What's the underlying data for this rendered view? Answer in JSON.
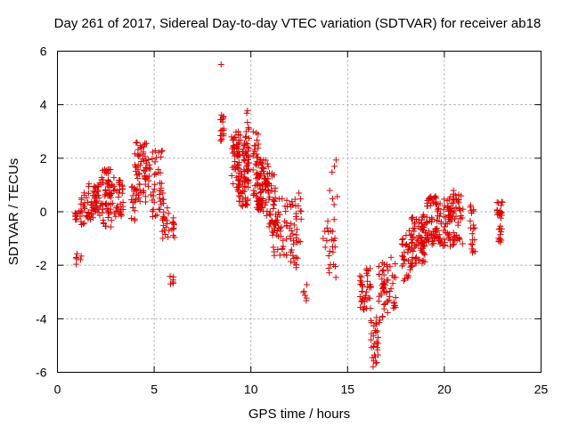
{
  "chart_data": {
    "type": "scatter",
    "marker": "plus",
    "color": "#dd0000",
    "title": "Day 261 of 2017, Sidereal Day-to-day VTEC variation (SDTVAR) for receiver ab18",
    "xlabel": "GPS time / hours",
    "ylabel": "SDTVAR / TECUs",
    "xlim": [
      0,
      25
    ],
    "ylim": [
      -6,
      6
    ],
    "xticks": [
      0,
      5,
      10,
      15,
      20,
      25
    ],
    "yticks": [
      -6,
      -4,
      -2,
      0,
      2,
      4,
      6
    ],
    "grid": true,
    "clusters": [
      {
        "x": [
          0.9,
          1.2
        ],
        "y": [
          -0.4,
          0.1
        ],
        "n": 10
      },
      {
        "x": [
          0.95,
          1.3
        ],
        "y": [
          -2.1,
          -1.5
        ],
        "n": 6
      },
      {
        "x": [
          1.2,
          1.6
        ],
        "y": [
          -0.5,
          0.8
        ],
        "n": 25
      },
      {
        "x": [
          1.6,
          2.2
        ],
        "y": [
          -0.3,
          1.1
        ],
        "n": 45
      },
      {
        "x": [
          2.2,
          2.8
        ],
        "y": [
          -0.6,
          1.6
        ],
        "n": 60
      },
      {
        "x": [
          2.8,
          3.4
        ],
        "y": [
          -0.2,
          1.3
        ],
        "n": 40
      },
      {
        "x": [
          3.8,
          4.0
        ],
        "y": [
          -0.4,
          1.0
        ],
        "n": 14
      },
      {
        "x": [
          4.0,
          4.6
        ],
        "y": [
          0.2,
          2.6
        ],
        "n": 55
      },
      {
        "x": [
          4.5,
          4.9
        ],
        "y": [
          0.5,
          2.0
        ],
        "n": 15
      },
      {
        "x": [
          4.9,
          5.5
        ],
        "y": [
          -0.2,
          2.3
        ],
        "n": 40
      },
      {
        "x": [
          5.4,
          5.8
        ],
        "y": [
          -1.0,
          0.2
        ],
        "n": 18
      },
      {
        "x": [
          5.8,
          6.0
        ],
        "y": [
          -2.7,
          -2.3
        ],
        "n": 6
      },
      {
        "x": [
          5.9,
          6.1
        ],
        "y": [
          -1.2,
          -0.2
        ],
        "n": 10
      },
      {
        "x": [
          8.4,
          8.5
        ],
        "y": [
          5.5,
          5.5
        ],
        "n": 1
      },
      {
        "x": [
          8.4,
          8.6
        ],
        "y": [
          2.6,
          3.7
        ],
        "n": 18
      },
      {
        "x": [
          9.0,
          9.4
        ],
        "y": [
          0.8,
          3.0
        ],
        "n": 40
      },
      {
        "x": [
          9.3,
          9.9
        ],
        "y": [
          0.2,
          3.0
        ],
        "n": 85
      },
      {
        "x": [
          9.7,
          10.0
        ],
        "y": [
          1.0,
          3.8
        ],
        "n": 12
      },
      {
        "x": [
          10.1,
          10.4
        ],
        "y": [
          0.4,
          3.0
        ],
        "n": 30
      },
      {
        "x": [
          10.3,
          10.9
        ],
        "y": [
          0.0,
          2.0
        ],
        "n": 75
      },
      {
        "x": [
          10.8,
          11.3
        ],
        "y": [
          -0.8,
          1.5
        ],
        "n": 35
      },
      {
        "x": [
          11.1,
          11.9
        ],
        "y": [
          -1.7,
          0.6
        ],
        "n": 45
      },
      {
        "x": [
          12.0,
          12.6
        ],
        "y": [
          -2.1,
          0.7
        ],
        "n": 40
      },
      {
        "x": [
          12.7,
          12.9
        ],
        "y": [
          -3.4,
          -2.6
        ],
        "n": 6
      },
      {
        "x": [
          13.7,
          14.0
        ],
        "y": [
          -1.4,
          -0.3
        ],
        "n": 6
      },
      {
        "x": [
          14.0,
          14.5
        ],
        "y": [
          -2.5,
          2.0
        ],
        "n": 25
      },
      {
        "x": [
          15.6,
          16.2
        ],
        "y": [
          -3.7,
          -2.1
        ],
        "n": 40
      },
      {
        "x": [
          16.2,
          16.6
        ],
        "y": [
          -5.8,
          -3.9
        ],
        "n": 30
      },
      {
        "x": [
          16.6,
          17.1
        ],
        "y": [
          -4.2,
          -1.9
        ],
        "n": 40
      },
      {
        "x": [
          17.1,
          17.5
        ],
        "y": [
          -3.8,
          -1.7
        ],
        "n": 18
      },
      {
        "x": [
          17.8,
          18.4
        ],
        "y": [
          -2.6,
          -0.7
        ],
        "n": 40
      },
      {
        "x": [
          18.3,
          19.0
        ],
        "y": [
          -2.0,
          0.0
        ],
        "n": 55
      },
      {
        "x": [
          18.8,
          19.6
        ],
        "y": [
          -1.3,
          -0.2
        ],
        "n": 50
      },
      {
        "x": [
          19.0,
          19.7
        ],
        "y": [
          0.2,
          0.6
        ],
        "n": 20
      },
      {
        "x": [
          19.6,
          20.3
        ],
        "y": [
          -1.3,
          0.5
        ],
        "n": 50
      },
      {
        "x": [
          20.2,
          21.0
        ],
        "y": [
          -1.3,
          0.8
        ],
        "n": 60
      },
      {
        "x": [
          21.3,
          21.6
        ],
        "y": [
          -1.7,
          0.3
        ],
        "n": 20
      },
      {
        "x": [
          22.7,
          23.0
        ],
        "y": [
          -1.3,
          0.4
        ],
        "n": 30
      }
    ]
  }
}
